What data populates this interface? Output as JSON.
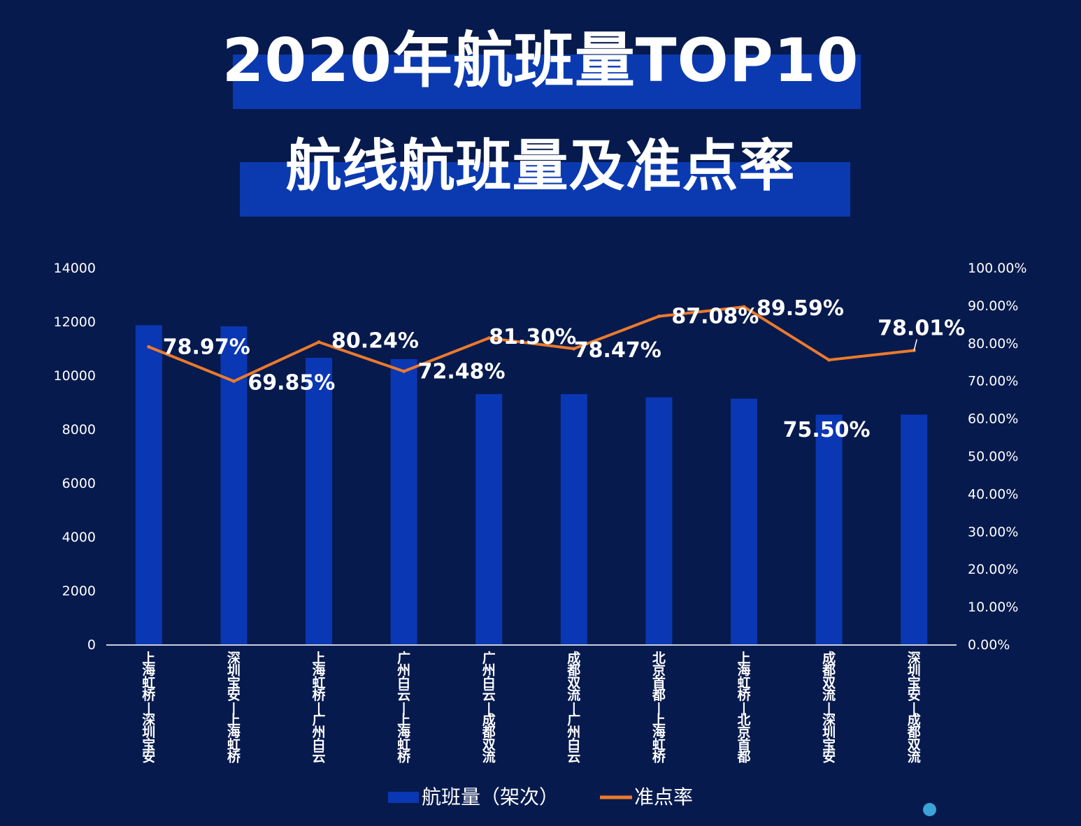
{
  "header": {
    "title_line1": "2020年航班量TOP10",
    "title_line2": "航线航班量及准点率"
  },
  "colors": {
    "background": "#061a4d",
    "band": "#0b3ab0",
    "bar": "#0a37b3",
    "line": "#ec7a2c",
    "text": "#ffffff"
  },
  "chart_data": {
    "type": "bar+line",
    "title": "",
    "categories": [
      "上海虹桥-深圳宝安",
      "深圳宝安-上海虹桥",
      "上海虹桥-广州白云",
      "广州白云-上海虹桥",
      "广州白云-成都双流",
      "成都双流-广州白云",
      "北京首都-上海虹桥",
      "上海虹桥-北京首都",
      "成都双流-深圳宝安",
      "深圳宝安-成都双流"
    ],
    "series": [
      {
        "name": "航班量（架次）",
        "type": "bar",
        "axis": "left",
        "values": [
          11860,
          11820,
          10650,
          10600,
          9300,
          9300,
          9180,
          9130,
          8540,
          8540
        ]
      },
      {
        "name": "准点率",
        "type": "line",
        "axis": "right",
        "values": [
          78.97,
          69.85,
          80.24,
          72.48,
          81.3,
          78.47,
          87.08,
          89.59,
          75.5,
          78.01
        ],
        "labels": [
          "78.97%",
          "69.85%",
          "80.24%",
          "72.48%",
          "81.30%",
          "78.47%",
          "87.08%",
          "89.59%",
          "75.50%",
          "78.01%"
        ]
      }
    ],
    "y_left": {
      "ylim": [
        0,
        14000
      ],
      "ticks": [
        "0",
        "2000",
        "4000",
        "6000",
        "8000",
        "10000",
        "12000",
        "14000"
      ]
    },
    "y_right": {
      "ylim": [
        0,
        100
      ],
      "ticks": [
        "0.00%",
        "10.00%",
        "20.00%",
        "30.00%",
        "40.00%",
        "50.00%",
        "60.00%",
        "70.00%",
        "80.00%",
        "90.00%",
        "100.00%"
      ]
    },
    "legend": {
      "position": "bottom",
      "entries": [
        "航班量（架次）",
        "准点率"
      ]
    },
    "grid": false
  }
}
